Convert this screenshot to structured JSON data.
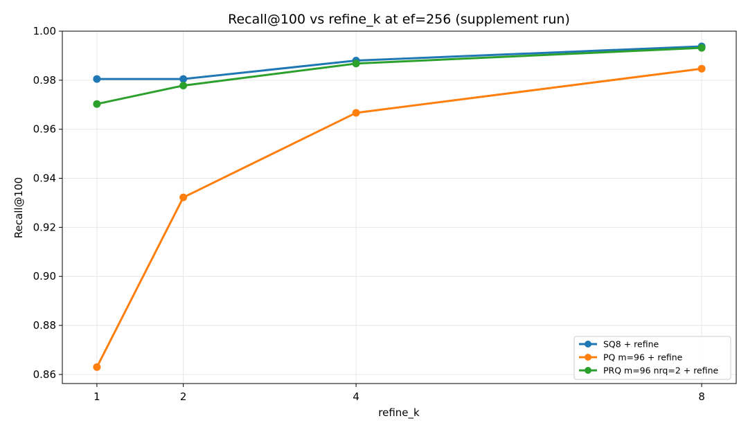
{
  "chart_data": {
    "type": "line",
    "title": "Recall@100 vs refine_k at ef=256 (supplement run)",
    "xlabel": "refine_k",
    "ylabel": "Recall@100",
    "x": [
      1,
      2,
      4,
      8
    ],
    "xlim": [
      0.6,
      8.4
    ],
    "ylim": [
      0.8563,
      1.0
    ],
    "xticks": [
      1,
      2,
      4,
      8
    ],
    "yticks": [
      0.86,
      0.88,
      0.9,
      0.92,
      0.94,
      0.96,
      0.98,
      1.0
    ],
    "ytick_labels": [
      "0.86",
      "0.88",
      "0.90",
      "0.92",
      "0.94",
      "0.96",
      "0.98",
      "1.00"
    ],
    "grid": true,
    "legend_position": "bottom-right",
    "series": [
      {
        "name": "SQ8 + refine",
        "color": "#1f77b4",
        "values": [
          0.9805,
          0.9805,
          0.988,
          0.9938
        ]
      },
      {
        "name": "PQ m=96 + refine",
        "color": "#ff7f0e",
        "values": [
          0.863,
          0.9322,
          0.9667,
          0.9847
        ]
      },
      {
        "name": "PRQ m=96 nrq=2 + refine",
        "color": "#2ca02c",
        "values": [
          0.9703,
          0.9778,
          0.9868,
          0.9932
        ]
      }
    ]
  }
}
